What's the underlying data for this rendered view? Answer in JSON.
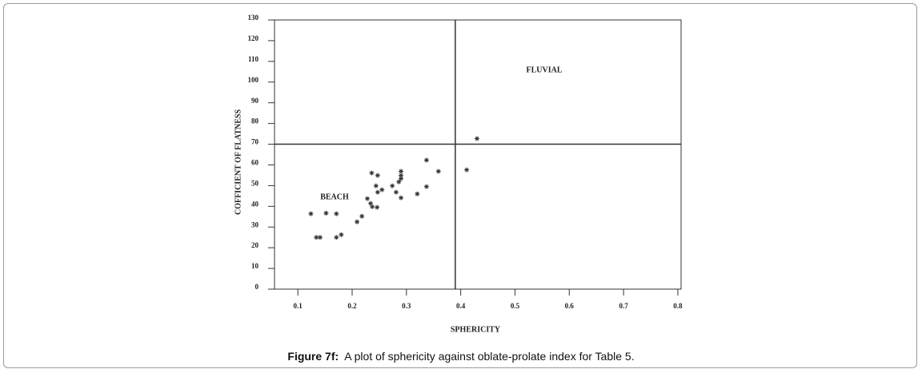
{
  "chart_data": {
    "type": "scatter",
    "xlabel": "SPHERICITY",
    "ylabel": "COFFICIENT OF FLATNESS",
    "annotations": [
      "FLUVIAL",
      "BEACH"
    ],
    "caption_label": "Figure 7f:",
    "caption": "A plot of sphericity against oblate-prolate index for Table 5.",
    "x": [
      0.124,
      0.134,
      0.141,
      0.152,
      0.171,
      0.171,
      0.18,
      0.209,
      0.218,
      0.228,
      0.234,
      0.236,
      0.237,
      0.246,
      0.244,
      0.247,
      0.247,
      0.255,
      0.274,
      0.281,
      0.286,
      0.29,
      0.29,
      0.29,
      0.29,
      0.32,
      0.337,
      0.337,
      0.359,
      0.411,
      0.43
    ],
    "values": [
      36.4,
      25,
      25,
      36.7,
      36.4,
      25,
      26.3,
      32.5,
      35.2,
      43.7,
      41.4,
      56.1,
      39.8,
      39.5,
      49.9,
      54.9,
      46.8,
      48,
      49.9,
      46.8,
      51.8,
      56.9,
      54.9,
      53.4,
      44.1,
      46,
      62.3,
      49.5,
      56.9,
      57.6,
      72.7
    ],
    "color": "#333333",
    "xlim": [
      0.057,
      0.806
    ],
    "ylim": [
      0,
      130
    ],
    "xticks": [
      0.1,
      0.2,
      0.3,
      0.4,
      0.5,
      0.6,
      0.7,
      0.8
    ],
    "yticks": [
      0,
      10,
      20,
      30,
      40,
      50,
      60,
      70,
      80,
      90,
      100,
      110,
      120,
      130
    ],
    "reference_lines": {
      "x": 0.39,
      "y": 70
    }
  }
}
